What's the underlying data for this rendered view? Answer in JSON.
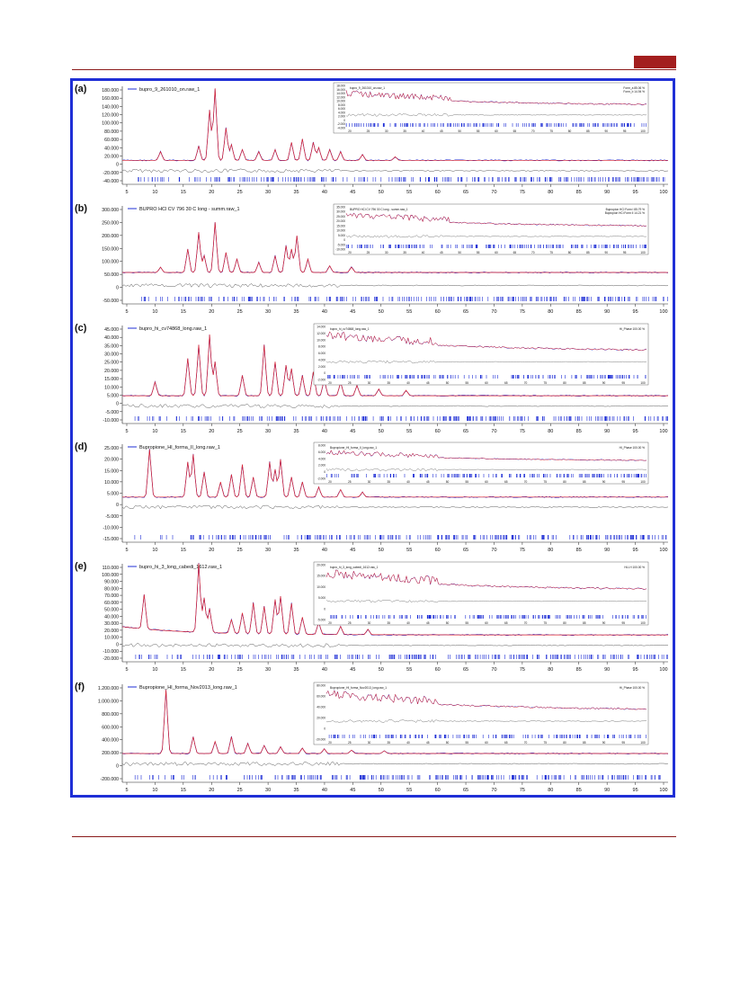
{
  "header": {
    "accent_color": "#a31e1e",
    "rule_color": "#8b1a1a"
  },
  "figure": {
    "frame_color": "#1f2fd6",
    "observed_color": "#1f2fd6",
    "calculated_color": "#e0232b",
    "difference_color": "#555555",
    "panels": [
      {
        "letter": "(a)",
        "legend": "bupro_9_261010_on.raw_1",
        "y_ticks": [
          "180.000",
          "160.000",
          "140.000",
          "120.000",
          "100.000",
          "80.000",
          "60.000",
          "40.000",
          "20.000",
          "0",
          "-20.000",
          "-40.000"
        ],
        "x_ticks": [
          "5",
          "10",
          "15",
          "20",
          "25",
          "30",
          "35",
          "40",
          "45",
          "50",
          "55",
          "60",
          "65",
          "70",
          "75",
          "80",
          "85",
          "90",
          "95",
          "100"
        ],
        "inset_legend": "bupro_9_261010_on.raw_1",
        "inset_stats": [
          "Form_a 85.06 %",
          "Form_b 14.94 %"
        ],
        "inset_y_ticks": [
          "18.000",
          "16.000",
          "14.000",
          "12.000",
          "10.000",
          "8.000",
          "6.000",
          "4.000",
          "2.000",
          "0",
          "-2.000",
          "-4.000"
        ],
        "inset_x_ticks": [
          "20",
          "25",
          "30",
          "35",
          "40",
          "45",
          "50",
          "55",
          "60",
          "65",
          "70",
          "75",
          "80",
          "85",
          "90",
          "95",
          "100"
        ]
      },
      {
        "letter": "(b)",
        "legend": "BUPRO HCl CV 796 30 C long - summ.raw_1",
        "y_ticks": [
          "300.000",
          "250.000",
          "200.000",
          "150.000",
          "100.000",
          "50.000",
          "0",
          "-50.000"
        ],
        "x_ticks": [
          "5",
          "10",
          "15",
          "20",
          "25",
          "30",
          "35",
          "40",
          "45",
          "50",
          "55",
          "60",
          "65",
          "70",
          "75",
          "80",
          "85",
          "90",
          "95",
          "100"
        ],
        "inset_legend": "BUPRO HCl CV 796 30 C long - summ.raw_1",
        "inset_stats": [
          "Bupropion HCl Form I 85.79 %",
          "Bupropion HCl Form II 14.21 %"
        ],
        "inset_y_ticks": [
          "35.000",
          "30.000",
          "25.000",
          "20.000",
          "15.000",
          "10.000",
          "5.000",
          "0",
          "-5.000",
          "-10.000"
        ],
        "inset_x_ticks": [
          "20",
          "25",
          "30",
          "35",
          "40",
          "45",
          "50",
          "55",
          "60",
          "65",
          "70",
          "75",
          "80",
          "85",
          "90",
          "95",
          "100"
        ]
      },
      {
        "letter": "(c)",
        "legend": "bupro_hi_cv74868_long.raw_1",
        "y_ticks": [
          "45.000",
          "40.000",
          "35.000",
          "30.000",
          "25.000",
          "20.000",
          "15.000",
          "10.000",
          "5.000",
          "0",
          "-5.000",
          "-10.000"
        ],
        "x_ticks": [
          "5",
          "10",
          "15",
          "20",
          "25",
          "30",
          "35",
          "40",
          "45",
          "50",
          "55",
          "60",
          "65",
          "70",
          "75",
          "80",
          "85",
          "90",
          "95",
          "100"
        ],
        "inset_legend": "bupro_hi_cv74868_long.raw_1",
        "inset_stats": [
          "Hi_Phase 100.00 %"
        ],
        "inset_y_ticks": [
          "14.000",
          "12.000",
          "10.000",
          "8.000",
          "6.000",
          "4.000",
          "2.000",
          "0",
          "-2.000"
        ],
        "inset_x_ticks": [
          "20",
          "25",
          "30",
          "35",
          "40",
          "45",
          "50",
          "55",
          "60",
          "65",
          "70",
          "75",
          "80",
          "85",
          "90",
          "95",
          "100"
        ]
      },
      {
        "letter": "(d)",
        "legend": "Bupropione_HI_forma_II_long.raw_1",
        "y_ticks": [
          "25.000",
          "20.000",
          "15.000",
          "10.000",
          "5.000",
          "0",
          "-5.000",
          "-10.000",
          "-15.000"
        ],
        "x_ticks": [
          "5",
          "10",
          "15",
          "20",
          "25",
          "30",
          "35",
          "40",
          "45",
          "50",
          "55",
          "60",
          "65",
          "70",
          "75",
          "80",
          "85",
          "90",
          "95",
          "100"
        ],
        "inset_legend": "Bupropione_HI_forma_II_long.raw_1",
        "inset_stats": [
          "HI_Phase 100.00 %"
        ],
        "inset_y_ticks": [
          "8.000",
          "6.000",
          "4.000",
          "2.000",
          "0",
          "-2.000"
        ],
        "inset_x_ticks": [
          "20",
          "25",
          "30",
          "35",
          "40",
          "45",
          "50",
          "55",
          "60",
          "65",
          "70",
          "75",
          "80",
          "85",
          "90",
          "95",
          "100"
        ]
      },
      {
        "letter": "(e)",
        "legend": "bupro_hi_3_long_cabedi_1612.raw_1",
        "y_ticks": [
          "110.000",
          "100.000",
          "90.000",
          "80.000",
          "70.000",
          "60.000",
          "50.000",
          "40.000",
          "30.000",
          "20.000",
          "10.000",
          "0",
          "-10.000",
          "-20.000"
        ],
        "x_ticks": [
          "5",
          "10",
          "15",
          "20",
          "25",
          "30",
          "35",
          "40",
          "45",
          "50",
          "55",
          "60",
          "65",
          "70",
          "75",
          "80",
          "85",
          "90",
          "95",
          "100"
        ],
        "inset_legend": "bupro_hi_3_long_cabedi_1612.raw_1",
        "inset_stats": [
          "Hi-I-H 100.00 %"
        ],
        "inset_y_ticks": [
          "20.000",
          "15.000",
          "10.000",
          "5.000",
          "0",
          "-5.000"
        ],
        "inset_x_ticks": [
          "20",
          "25",
          "30",
          "35",
          "40",
          "45",
          "50",
          "55",
          "60",
          "65",
          "70",
          "75",
          "80",
          "85",
          "90",
          "95",
          "100"
        ]
      },
      {
        "letter": "(f)",
        "legend": "Bupropione_HI_forma_Nov2013_long.raw_1",
        "y_ticks": [
          "1.200.000",
          "1.000.000",
          "800.000",
          "600.000",
          "400.000",
          "200.000",
          "0",
          "-200.000"
        ],
        "x_ticks": [
          "5",
          "10",
          "15",
          "20",
          "25",
          "30",
          "35",
          "40",
          "45",
          "50",
          "55",
          "60",
          "65",
          "70",
          "75",
          "80",
          "85",
          "90",
          "95",
          "100"
        ],
        "inset_legend": "Bupropione_HI_forma_Nov2013_long.raw_1",
        "inset_stats": [
          "Hi_Phase 100.00 %"
        ],
        "inset_y_ticks": [
          "80.000",
          "60.000",
          "40.000",
          "20.000",
          "0",
          "-20.000"
        ],
        "inset_x_ticks": [
          "20",
          "25",
          "30",
          "35",
          "40",
          "45",
          "50",
          "55",
          "60",
          "65",
          "70",
          "75",
          "80",
          "85",
          "90",
          "95",
          "100"
        ]
      }
    ]
  }
}
